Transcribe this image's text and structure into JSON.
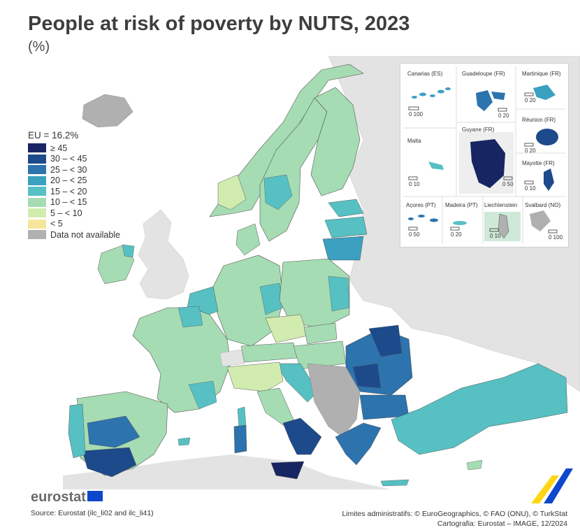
{
  "title": "People at risk of poverty by NUTS, 2023",
  "subtitle": "(%)",
  "legend": {
    "title": "EU = 16.2%",
    "items": [
      {
        "label": "≥ 45",
        "color": "#172663"
      },
      {
        "label": "30 – < 45",
        "color": "#1c4a8b"
      },
      {
        "label": "25 – < 30",
        "color": "#2d73ad"
      },
      {
        "label": "20 – < 25",
        "color": "#3ca0c0"
      },
      {
        "label": "15 – < 20",
        "color": "#56c0c3"
      },
      {
        "label": "10 – < 15",
        "color": "#a5dcb3"
      },
      {
        "label": "5 – < 10",
        "color": "#d2ecb0"
      },
      {
        "label": "< 5",
        "color": "#f6e59c"
      },
      {
        "label": "Data not available",
        "color": "#b0b0b0"
      }
    ]
  },
  "insets": {
    "canarias": {
      "name": "Canarias (ES)",
      "scale": "0   100"
    },
    "guadeloupe": {
      "name": "Guadeloupe (FR)",
      "scale": "0   20"
    },
    "martinique": {
      "name": "Martinique (FR)",
      "scale": "0   20"
    },
    "reunion": {
      "name": "Réunion (FR)",
      "scale": "0   20"
    },
    "malta": {
      "name": "Malta",
      "scale": "0   10"
    },
    "guyane": {
      "name": "Guyane (FR)",
      "scale": "0   50"
    },
    "mayotte": {
      "name": "Mayotte (FR)",
      "scale": "0   10"
    },
    "acores": {
      "name": "Açores (PT)",
      "scale": "0   50"
    },
    "madeira": {
      "name": "Madeira (PT)",
      "scale": "0   20"
    },
    "liechtenstein": {
      "name": "Liechtenstein",
      "scale": "0   10"
    },
    "svalbard": {
      "name": "Svalbard (NO)",
      "scale": "0 100"
    }
  },
  "footer": {
    "logo": "eurostat",
    "source": "Source: Eurostat (ilc_li02 and ilc_li41)",
    "credits_line1": "Limites administratifs: © EuroGeographics, © FAO (ONU), © TurkStat",
    "credits_line2": "Cartografia: Eurostat – IMAGE, 12/2024"
  }
}
